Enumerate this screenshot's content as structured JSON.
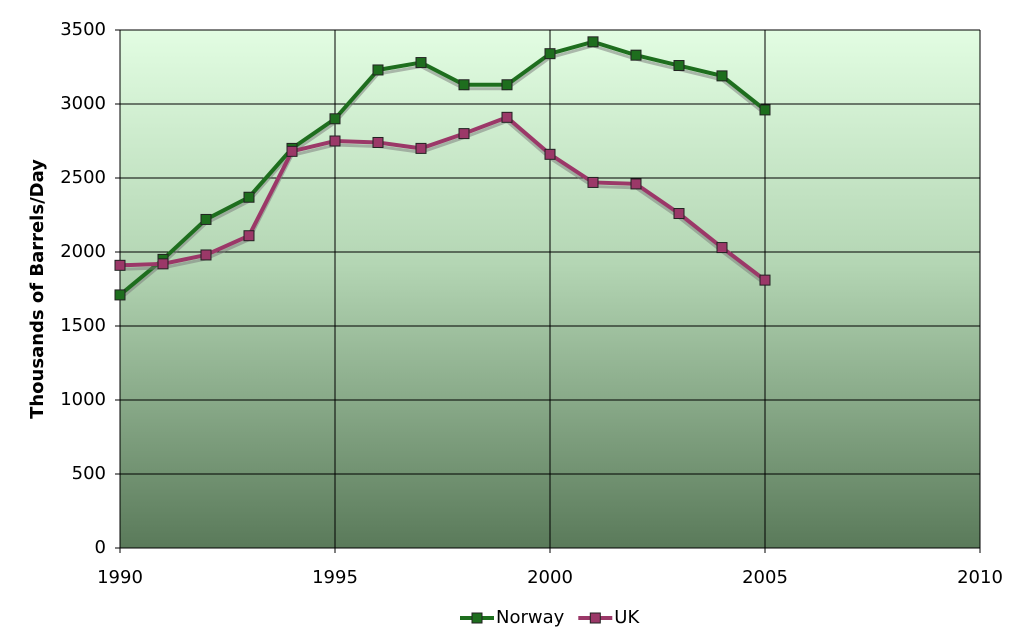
{
  "chart_data": {
    "type": "line",
    "ylabel": "Thousands of Barrels/Day",
    "x": [
      1990,
      1991,
      1992,
      1993,
      1994,
      1995,
      1996,
      1997,
      1998,
      1999,
      2000,
      2001,
      2002,
      2003,
      2004,
      2005
    ],
    "series": [
      {
        "name": "Norway",
        "color": "#1e6e1e",
        "values": [
          1710,
          1950,
          2220,
          2370,
          2700,
          2900,
          3230,
          3280,
          3130,
          3130,
          3340,
          3420,
          3330,
          3260,
          3190,
          2960
        ]
      },
      {
        "name": "UK",
        "color": "#9b3868",
        "values": [
          1910,
          1920,
          1980,
          2110,
          2680,
          2750,
          2740,
          2700,
          2800,
          2910,
          2660,
          2470,
          2460,
          2260,
          2030,
          1810
        ]
      }
    ],
    "xlim": [
      1990,
      2010
    ],
    "xticks": [
      1990,
      1995,
      2000,
      2005,
      2010
    ],
    "ylim": [
      0,
      3500
    ],
    "yticks": [
      0,
      500,
      1000,
      1500,
      2000,
      2500,
      3000,
      3500
    ],
    "grid": true,
    "legend": "bottom"
  }
}
